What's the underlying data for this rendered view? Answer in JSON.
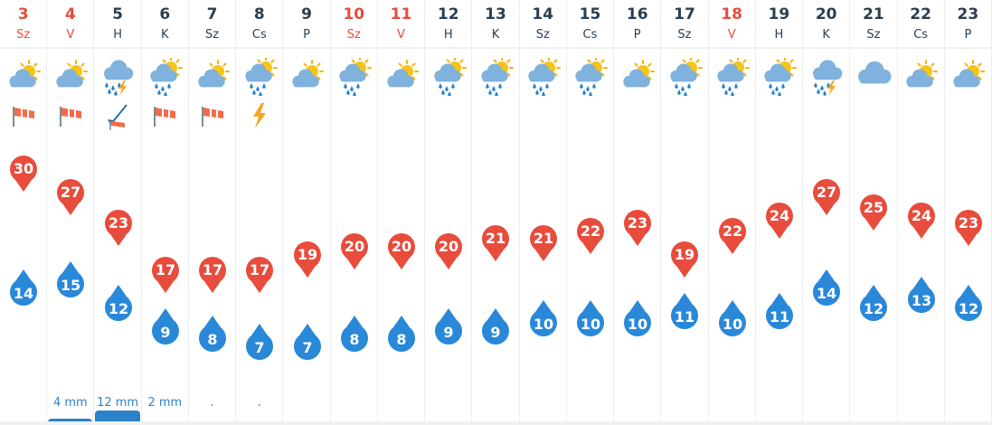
{
  "chart_data": {
    "type": "line",
    "days": [
      {
        "day": "3",
        "name": "Sz",
        "weekend": true,
        "icon": "sun-cloud-icon",
        "extra": "wind-icon",
        "max": 30,
        "min": 14,
        "precip": ""
      },
      {
        "day": "4",
        "name": "V",
        "weekend": true,
        "icon": "sun-cloud-icon",
        "extra": "wind-icon",
        "max": 27,
        "min": 15,
        "precip": "4 mm",
        "precip_level": 0.33
      },
      {
        "day": "5",
        "name": "H",
        "weekend": false,
        "icon": "thunder-rain-icon",
        "extra": "wind-direction-icon",
        "max": 23,
        "min": 12,
        "precip": "12 mm",
        "precip_level": 1.0
      },
      {
        "day": "6",
        "name": "K",
        "weekend": false,
        "icon": "sun-rain-icon",
        "extra": "wind-icon",
        "max": 17,
        "min": 9,
        "precip": "2 mm",
        "precip_level": 0.17
      },
      {
        "day": "7",
        "name": "Sz",
        "weekend": false,
        "icon": "sun-cloud-icon",
        "extra": "wind-icon",
        "max": 17,
        "min": 8,
        "precip": ".",
        "precip_level": 0.08
      },
      {
        "day": "8",
        "name": "Cs",
        "weekend": false,
        "icon": "sun-rain-icon",
        "extra": "lightning-icon",
        "max": 17,
        "min": 7,
        "precip": ".",
        "precip_level": 0.08
      },
      {
        "day": "9",
        "name": "P",
        "weekend": false,
        "icon": "sun-cloud-icon",
        "extra": "",
        "max": 19,
        "min": 7,
        "precip": ""
      },
      {
        "day": "10",
        "name": "Sz",
        "weekend": true,
        "icon": "sun-rain-icon",
        "extra": "",
        "max": 20,
        "min": 8,
        "precip": ""
      },
      {
        "day": "11",
        "name": "V",
        "weekend": true,
        "icon": "sun-cloud-icon",
        "extra": "",
        "max": 20,
        "min": 8,
        "precip": ""
      },
      {
        "day": "12",
        "name": "H",
        "weekend": false,
        "icon": "sun-rain-icon",
        "extra": "",
        "max": 20,
        "min": 9,
        "precip": ""
      },
      {
        "day": "13",
        "name": "K",
        "weekend": false,
        "icon": "sun-rain-icon",
        "extra": "",
        "max": 21,
        "min": 9,
        "precip": ""
      },
      {
        "day": "14",
        "name": "Sz",
        "weekend": false,
        "icon": "sun-rain-icon",
        "extra": "",
        "max": 21,
        "min": 10,
        "precip": ""
      },
      {
        "day": "15",
        "name": "Cs",
        "weekend": false,
        "icon": "sun-rain-icon",
        "extra": "",
        "max": 22,
        "min": 10,
        "precip": ""
      },
      {
        "day": "16",
        "name": "P",
        "weekend": false,
        "icon": "sun-cloud-icon",
        "extra": "",
        "max": 23,
        "min": 10,
        "precip": ""
      },
      {
        "day": "17",
        "name": "Sz",
        "weekend": false,
        "icon": "sun-rain-icon",
        "extra": "",
        "max": 19,
        "min": 11,
        "precip": ""
      },
      {
        "day": "18",
        "name": "V",
        "weekend": true,
        "icon": "sun-rain-icon",
        "extra": "",
        "max": 22,
        "min": 10,
        "precip": ""
      },
      {
        "day": "19",
        "name": "H",
        "weekend": false,
        "icon": "sun-rain-icon",
        "extra": "",
        "max": 24,
        "min": 11,
        "precip": ""
      },
      {
        "day": "20",
        "name": "K",
        "weekend": false,
        "icon": "thunder-rain-icon",
        "extra": "",
        "max": 27,
        "min": 14,
        "precip": ""
      },
      {
        "day": "21",
        "name": "Sz",
        "weekend": false,
        "icon": "cloud-icon",
        "extra": "",
        "max": 25,
        "min": 12,
        "precip": ""
      },
      {
        "day": "22",
        "name": "Cs",
        "weekend": false,
        "icon": "sun-cloud-icon",
        "extra": "",
        "max": 24,
        "min": 13,
        "precip": ""
      },
      {
        "day": "23",
        "name": "P",
        "weekend": false,
        "icon": "sun-cloud-icon",
        "extra": "",
        "max": 23,
        "min": 12,
        "precip": ""
      }
    ],
    "colors": {
      "max": "#e74c3c",
      "min": "#2a88d8",
      "text": "#2c3e50",
      "weekend": "#e74c3c",
      "precip": "#2a82c9"
    }
  }
}
